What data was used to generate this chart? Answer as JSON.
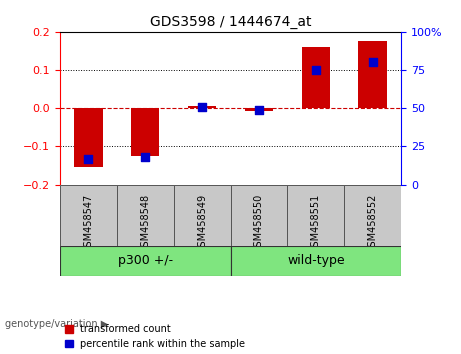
{
  "title": "GDS3598 / 1444674_at",
  "samples": [
    "GSM458547",
    "GSM458548",
    "GSM458549",
    "GSM458550",
    "GSM458551",
    "GSM458552"
  ],
  "transformed_count": [
    -0.155,
    -0.125,
    0.005,
    -0.008,
    0.16,
    0.175
  ],
  "percentile_rank": [
    17,
    18,
    51,
    49,
    75,
    80
  ],
  "groups": [
    {
      "label": "p300 +/-",
      "start": 0,
      "end": 3
    },
    {
      "label": "wild-type",
      "start": 3,
      "end": 6
    }
  ],
  "left_ylim": [
    -0.2,
    0.2
  ],
  "right_ylim": [
    0,
    100
  ],
  "left_yticks": [
    -0.2,
    -0.1,
    0,
    0.1,
    0.2
  ],
  "right_yticks": [
    0,
    25,
    50,
    75,
    100
  ],
  "right_yticklabels": [
    "0",
    "25",
    "50",
    "75",
    "100%"
  ],
  "bar_color": "#CC0000",
  "dot_color": "#0000CC",
  "bar_width": 0.5,
  "dot_size": 35,
  "zero_line_color": "#CC0000",
  "group_box_color": "#C8C8C8",
  "group_label_color": "#7FE57F",
  "legend_red_label": "transformed count",
  "legend_blue_label": "percentile rank within the sample",
  "bg_color": "#FFFFFF"
}
